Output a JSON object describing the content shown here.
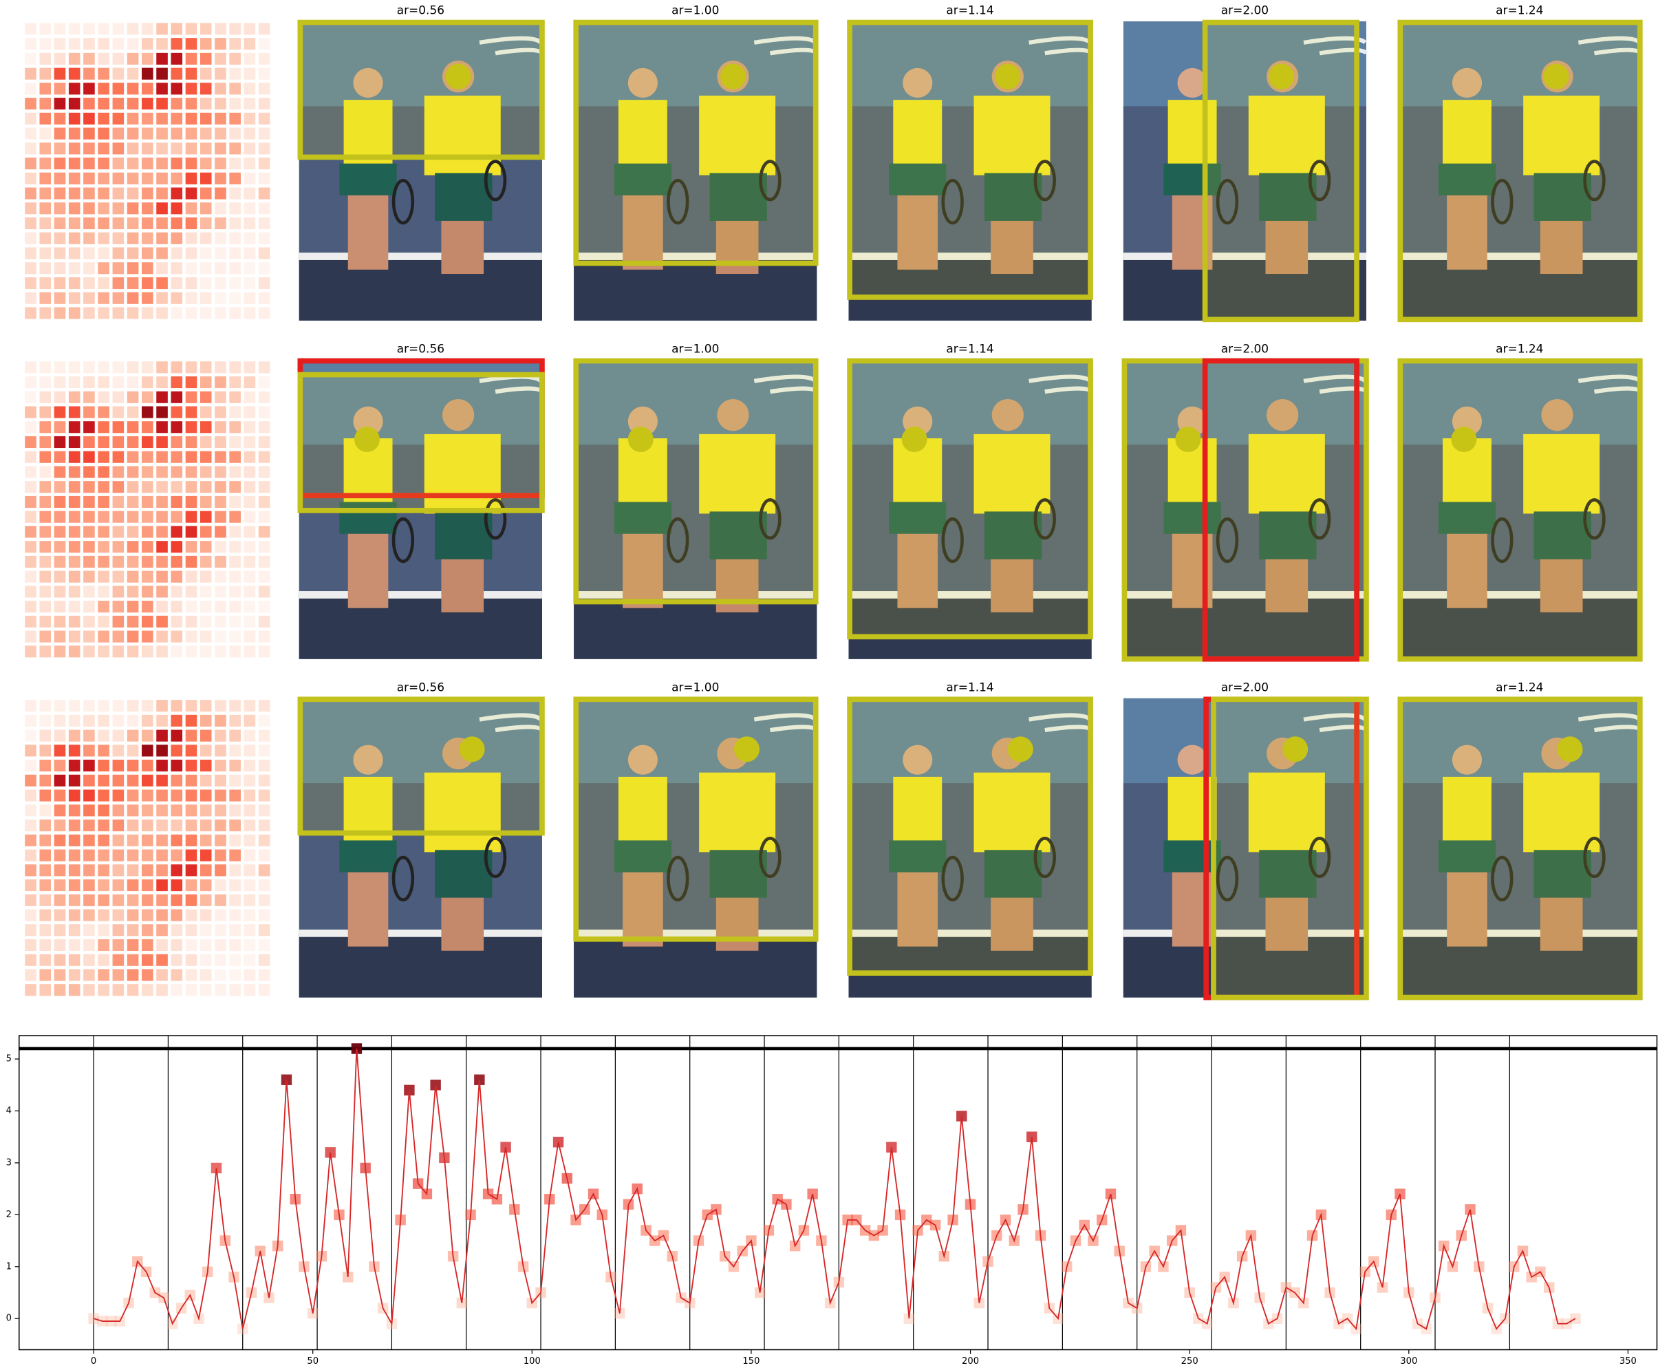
{
  "figure": {
    "rows": [
      {
        "titles": [
          "ar=0.56",
          "ar=1.00",
          "ar=1.14",
          "ar=2.00",
          "ar=1.24"
        ]
      },
      {
        "titles": [
          "ar=0.56",
          "ar=1.00",
          "ar=1.14",
          "ar=2.00",
          "ar=1.24"
        ]
      },
      {
        "titles": [
          "ar=0.56",
          "ar=1.00",
          "ar=1.14",
          "ar=2.00",
          "ar=1.24"
        ]
      }
    ]
  },
  "chart_data": {
    "type": "line",
    "color": "#d62728",
    "x": [
      0,
      2,
      4,
      6,
      8,
      10,
      12,
      14,
      16,
      18,
      20,
      22,
      24,
      26,
      28,
      30,
      32,
      34,
      36,
      38,
      40,
      42,
      44,
      46,
      48,
      50,
      52,
      54,
      56,
      58,
      60,
      62,
      64,
      66,
      68,
      70,
      72,
      74,
      76,
      78,
      80,
      82,
      84,
      86,
      88,
      90,
      92,
      94,
      96,
      98,
      100,
      102,
      104,
      106,
      108,
      110,
      112,
      114,
      116,
      118,
      120,
      122,
      124,
      126,
      128,
      130,
      132,
      134,
      136,
      138,
      140,
      142,
      144,
      146,
      148,
      150,
      152,
      154,
      156,
      158,
      160,
      162,
      164,
      166,
      168,
      170,
      172,
      174,
      176,
      178,
      180,
      182,
      184,
      186,
      188,
      190,
      192,
      194,
      196,
      198,
      200,
      202,
      204,
      206,
      208,
      210,
      212,
      214,
      216,
      218,
      220,
      222,
      224,
      226,
      228,
      230,
      232,
      234,
      236,
      238,
      240,
      242,
      244,
      246,
      248,
      250,
      252,
      254,
      256,
      258,
      260,
      262,
      264,
      266,
      268,
      270,
      272,
      274,
      276,
      278,
      280,
      282,
      284,
      286,
      288,
      290,
      292,
      294,
      296,
      298,
      300,
      302,
      304,
      306,
      308,
      310,
      312,
      314,
      316,
      318,
      320,
      322,
      324,
      326,
      328,
      330,
      332,
      334,
      336,
      338
    ],
    "values": [
      0,
      -0.05,
      -0.05,
      -0.05,
      0.3,
      1.1,
      0.9,
      0.5,
      0.4,
      -0.1,
      0.2,
      0.45,
      0,
      0.9,
      2.9,
      1.5,
      0.8,
      -0.2,
      0.5,
      1.3,
      0.4,
      1.4,
      4.6,
      2.3,
      1.0,
      0.1,
      1.2,
      3.2,
      2.0,
      0.8,
      5.2,
      2.9,
      1.0,
      0.2,
      -0.1,
      1.9,
      4.4,
      2.6,
      2.4,
      4.5,
      3.1,
      1.2,
      0.3,
      2.0,
      4.6,
      2.4,
      2.3,
      3.3,
      2.1,
      1.0,
      0.3,
      0.5,
      2.3,
      3.4,
      2.7,
      1.9,
      2.1,
      2.4,
      2.0,
      0.8,
      0.1,
      2.2,
      2.5,
      1.7,
      1.5,
      1.6,
      1.2,
      0.4,
      0.3,
      1.5,
      2.0,
      2.1,
      1.2,
      1.0,
      1.3,
      1.5,
      0.5,
      1.7,
      2.3,
      2.2,
      1.4,
      1.7,
      2.4,
      1.5,
      0.3,
      0.7,
      1.9,
      1.9,
      1.7,
      1.6,
      1.7,
      3.3,
      2.0,
      0.0,
      1.7,
      1.9,
      1.8,
      1.2,
      1.9,
      3.9,
      2.2,
      0.3,
      1.1,
      1.6,
      1.9,
      1.5,
      2.1,
      3.5,
      1.6,
      0.2,
      0.0,
      1.0,
      1.5,
      1.8,
      1.5,
      1.9,
      2.4,
      1.3,
      0.3,
      0.2,
      1.0,
      1.3,
      1.0,
      1.5,
      1.7,
      0.5,
      0.0,
      -0.1,
      0.6,
      0.8,
      0.3,
      1.2,
      1.6,
      0.4,
      -0.1,
      0.0,
      0.6,
      0.5,
      0.3,
      1.6,
      2.0,
      0.5,
      -0.1,
      0.0,
      -0.2,
      0.9,
      1.1,
      0.6,
      2.0,
      2.4,
      0.5,
      -0.1,
      -0.2,
      0.4,
      1.4,
      1.0,
      1.6,
      2.1,
      1.0,
      0.2,
      -0.2,
      0.0,
      1.0,
      1.3,
      0.8,
      0.9,
      0.6,
      -0.1,
      -0.1,
      0.0
    ],
    "xlim": [
      -17,
      356.6
    ],
    "ylim": [
      -0.6,
      5.45
    ],
    "xticks": [
      0,
      50,
      100,
      150,
      200,
      250,
      300,
      350
    ],
    "yticks": [
      0,
      1,
      2,
      3,
      4,
      5
    ],
    "vlines": [
      0,
      17,
      34,
      51,
      68,
      85,
      102,
      119,
      136,
      153,
      170,
      187,
      204,
      221,
      238,
      255,
      272,
      289,
      306,
      323
    ],
    "hline": 5.2
  }
}
